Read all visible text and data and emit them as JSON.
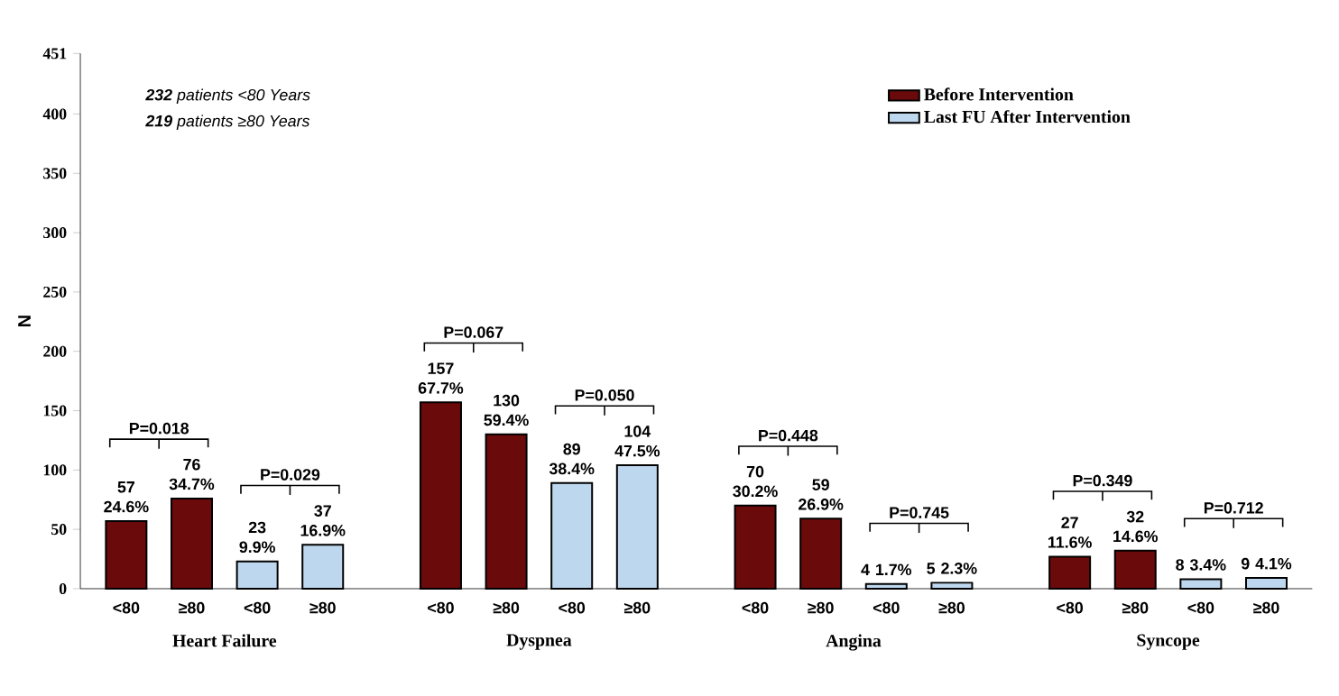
{
  "chart_data": {
    "type": "bar",
    "ylabel": "N",
    "categories": [
      "<80",
      "≥80",
      "<80",
      "≥80",
      "<80",
      "≥80",
      "<80",
      "≥80",
      "<80",
      "≥80",
      "<80",
      "≥80",
      "<80",
      "≥80",
      "<80",
      "≥80"
    ],
    "series": [
      {
        "name": "Before Intervention",
        "color": "#6b0a0a",
        "values": [
          57,
          76,
          null,
          null,
          157,
          130,
          null,
          null,
          70,
          59,
          null,
          null,
          27,
          32,
          null,
          null
        ],
        "value_labels": [
          "57 24.6%",
          "76 34.7%",
          null,
          null,
          "157 67.7%",
          "130 59.4%",
          null,
          null,
          "70 30.2%",
          "59 26.9%",
          null,
          null,
          "27 11.6%",
          "32 14.6%",
          null,
          null
        ]
      },
      {
        "name": "Last FU After Intervention",
        "color": "#bdd7ee",
        "values": [
          null,
          null,
          23,
          37,
          null,
          null,
          89,
          104,
          null,
          null,
          4,
          5,
          null,
          null,
          8,
          9
        ],
        "value_labels": [
          null,
          null,
          "23 9.9%",
          "37 16.9%",
          null,
          null,
          "89 38.4%",
          "104 47.5%",
          null,
          null,
          "4 1.7%",
          "5 2.3%",
          null,
          null,
          "8 3.4%",
          "9 4.1%"
        ]
      }
    ],
    "ylim": [
      0,
      451
    ],
    "yticks": [
      0,
      50,
      100,
      150,
      200,
      250,
      300,
      350,
      400,
      451
    ],
    "legend": "top right",
    "grid": false,
    "annotations": [
      "**232** patients <80 Years",
      "**219** patients ≥80 Years",
      "P=0.018",
      "P=0.029",
      "P=0.067",
      "P=0.050",
      "P=0.448",
      "P=0.745",
      "P=0.349",
      "P=0.712",
      "Heart Failure",
      "Dyspnea",
      "Angina",
      "Syncope"
    ]
  }
}
